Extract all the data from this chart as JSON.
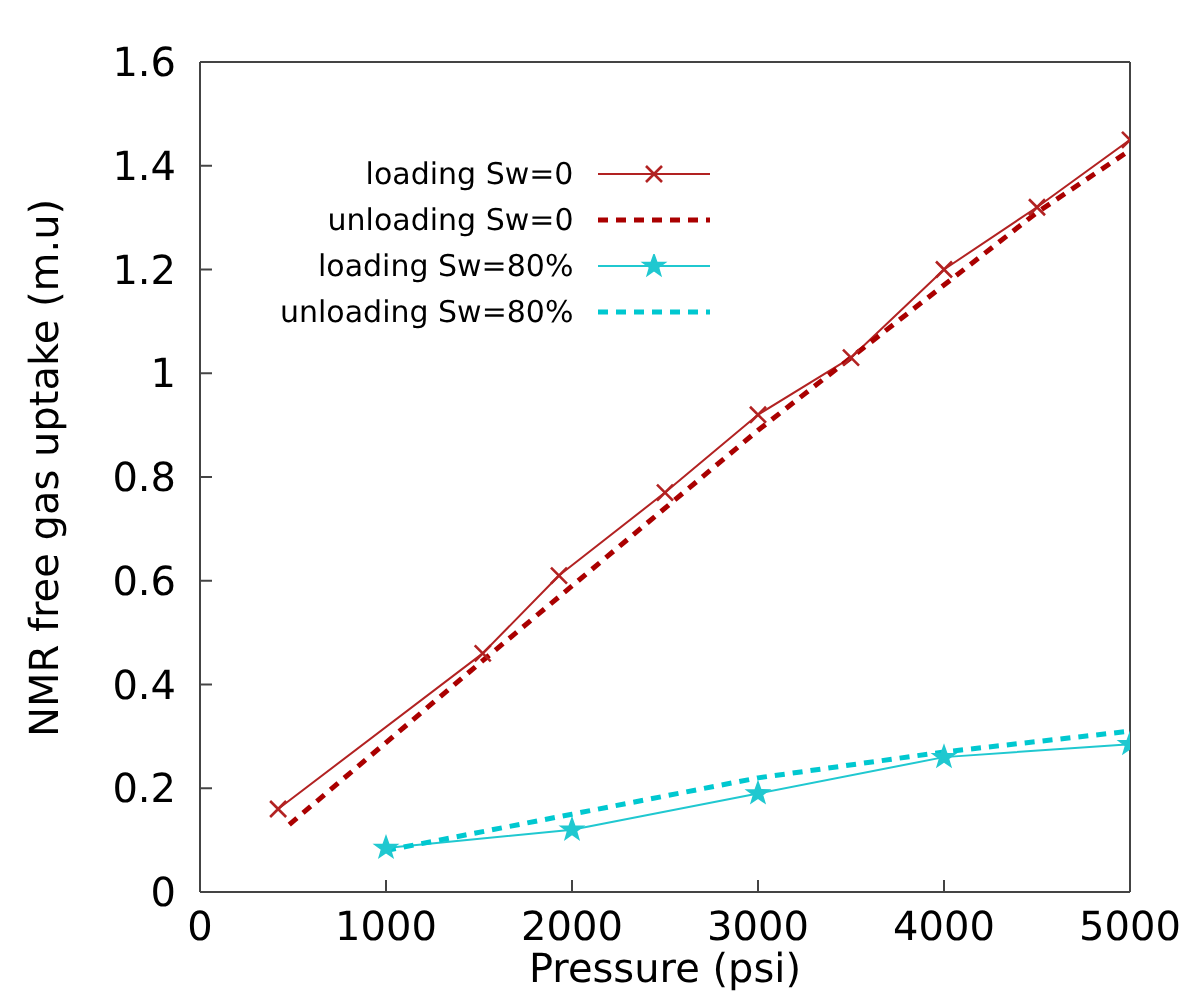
{
  "chart_data": {
    "type": "line",
    "xlabel": "Pressure (psi)",
    "ylabel": "NMR free gas uptake (m.u)",
    "xlim": [
      0,
      5000
    ],
    "xticks": [
      0,
      1000,
      2000,
      3000,
      4000,
      5000
    ],
    "ylim": [
      0,
      1.6
    ],
    "yticks": [
      0,
      0.2,
      0.4,
      0.6,
      0.8,
      1,
      1.2,
      1.4,
      1.6
    ],
    "grid": false,
    "legend": "top left",
    "series": [
      {
        "name": "loading Sw=0",
        "color": "#b22222",
        "marker": "cross",
        "line_style": "solid",
        "x": [
          420,
          1520,
          1930,
          2500,
          3000,
          3500,
          4000,
          4500,
          5000
        ],
        "values": [
          0.16,
          0.46,
          0.61,
          0.77,
          0.92,
          1.03,
          1.2,
          1.32,
          1.45
        ]
      },
      {
        "name": "unloading Sw=0",
        "color": "#aa0000",
        "marker": "none",
        "line_style": "dashed",
        "x": [
          480,
          1500,
          2000,
          3000,
          3500,
          4000,
          4500,
          5000
        ],
        "values": [
          0.13,
          0.44,
          0.59,
          0.89,
          1.03,
          1.17,
          1.31,
          1.43
        ]
      },
      {
        "name": "loading Sw=80%",
        "color": "#20c8d0",
        "marker": "star",
        "line_style": "solid",
        "x": [
          1000,
          2000,
          3000,
          4000,
          5000
        ],
        "values": [
          0.085,
          0.12,
          0.19,
          0.26,
          0.285
        ]
      },
      {
        "name": "unloading Sw=80%",
        "color": "#00c8d0",
        "marker": "none",
        "line_style": "dashed",
        "x": [
          1000,
          2000,
          3000,
          4000,
          5000
        ],
        "values": [
          0.08,
          0.15,
          0.22,
          0.27,
          0.31
        ]
      }
    ]
  }
}
